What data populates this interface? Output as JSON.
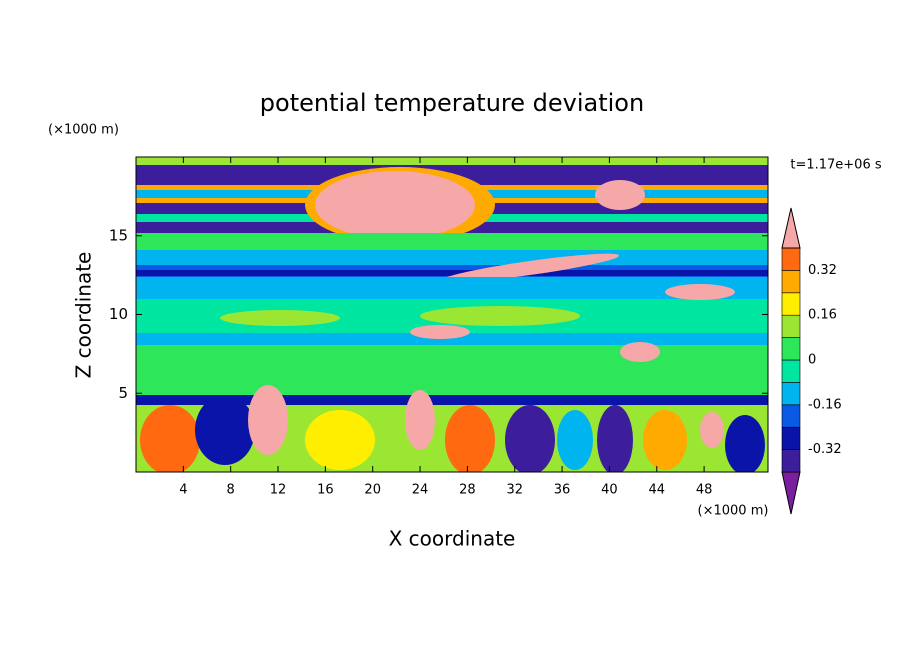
{
  "chart_data": {
    "type": "contour",
    "title": "potential temperature deviation",
    "x_label": "X coordinate",
    "y_label": "Z coordinate",
    "x_unit_label": "(×1000 m)",
    "y_unit_label": "(×1000 m)",
    "time_label": "t=1.17e+06 s",
    "xlim": [
      0,
      53.4
    ],
    "ylim": [
      0,
      20
    ],
    "xticks": [
      4,
      8,
      12,
      16,
      20,
      24,
      28,
      32,
      36,
      40,
      44,
      48
    ],
    "yticks": [
      5,
      10,
      15
    ],
    "levels": [
      -0.4,
      -0.32,
      -0.24,
      -0.16,
      -0.08,
      0,
      0.08,
      0.16,
      0.24,
      0.32,
      0.4
    ],
    "colors": [
      "#7a1fa0",
      "#3c1e9c",
      "#0a14a8",
      "#0a5ae6",
      "#00b4f0",
      "#00e6a0",
      "#2ee65a",
      "#9be632",
      "#ffee00",
      "#ffaa00",
      "#ff6a10",
      "#ff2828",
      "#f6a8a8"
    ],
    "colorbar_ticks": [
      -0.32,
      -0.16,
      0,
      0.16,
      0.32
    ]
  }
}
